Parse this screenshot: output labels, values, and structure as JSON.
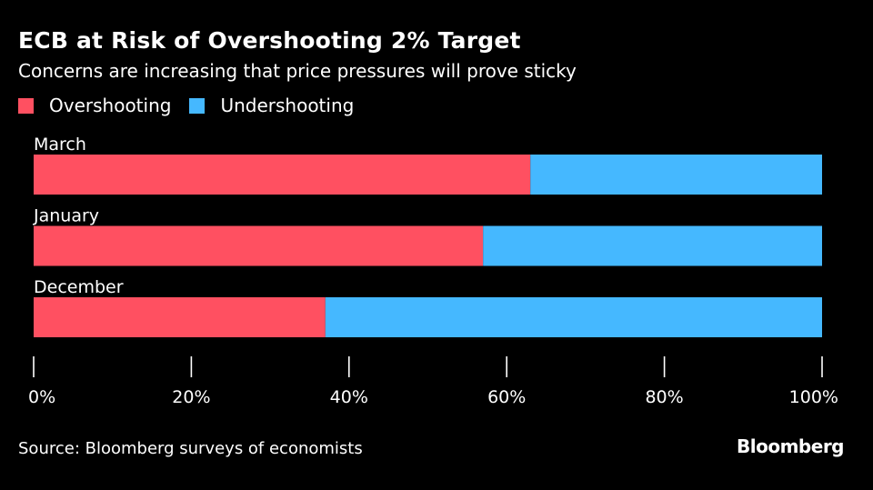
{
  "chart_data": {
    "type": "bar",
    "orientation": "horizontal",
    "stacked": true,
    "title": "ECB at Risk of Overshooting 2% Target",
    "subtitle": "Concerns are increasing that price pressures will prove sticky",
    "categories": [
      "March",
      "January",
      "December"
    ],
    "series": [
      {
        "name": "Overshooting",
        "color": "#ff5061",
        "values": [
          63,
          57,
          37
        ]
      },
      {
        "name": "Undershooting",
        "color": "#45b8ff",
        "values": [
          37,
          43,
          63
        ]
      }
    ],
    "xlim": [
      0,
      100
    ],
    "xticks": [
      0,
      20,
      40,
      60,
      80,
      100
    ],
    "xtick_labels": [
      "0%",
      "20%",
      "40%",
      "60%",
      "80%",
      "100%"
    ],
    "xlabel": "",
    "ylabel": "",
    "legend_position": "top-left",
    "grid": false
  },
  "source": "Source: Bloomberg surveys of economists",
  "brand": "Bloomberg"
}
